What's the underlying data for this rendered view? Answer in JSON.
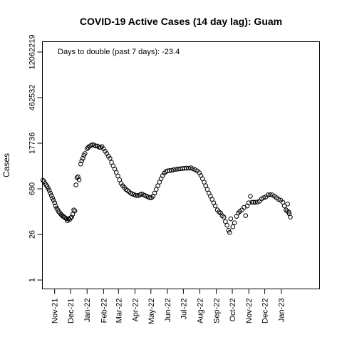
{
  "chart_data": {
    "type": "scatter",
    "title": "COVID-19 Active Cases (14 day lag): Guam",
    "ylabel": "Cases",
    "xlabel": "",
    "annotation": "Days to double (past 7 days): -23.4",
    "y_scale": "log",
    "ylim": [
      1,
      12062219
    ],
    "y_ticks": [
      1,
      26,
      680,
      17736,
      462532,
      12062219
    ],
    "y_tick_labels": [
      "1",
      "26",
      "680",
      "17736",
      "462532",
      "12062219"
    ],
    "xlim": [
      "2021-10-09",
      "2023-03-14"
    ],
    "x_ticks": [
      "2021-11-01",
      "2021-12-01",
      "2022-01-01",
      "2022-02-01",
      "2022-03-01",
      "2022-04-01",
      "2022-05-01",
      "2022-06-01",
      "2022-07-01",
      "2022-08-01",
      "2022-09-01",
      "2022-10-01",
      "2022-11-01",
      "2022-12-01",
      "2023-01-01"
    ],
    "x_tick_labels": [
      "Nov-21",
      "Dec-21",
      "Jan-22",
      "Feb-22",
      "Mar-22",
      "Apr-22",
      "May-22",
      "Jun-22",
      "Jul-22",
      "Aug-22",
      "Sep-22",
      "Oct-22",
      "Nov-22",
      "Dec-22",
      "Jan-23"
    ],
    "series": [
      {
        "marker": "open-circle",
        "color": "#000000",
        "points": [
          [
            "2021-10-10",
            1250
          ],
          [
            "2021-10-12",
            1150
          ],
          [
            "2021-10-14",
            1000
          ],
          [
            "2021-10-16",
            900
          ],
          [
            "2021-10-18",
            800
          ],
          [
            "2021-10-20",
            700
          ],
          [
            "2021-10-22",
            600
          ],
          [
            "2021-10-24",
            500
          ],
          [
            "2021-10-26",
            420
          ],
          [
            "2021-10-28",
            350
          ],
          [
            "2021-10-30",
            300
          ],
          [
            "2021-11-01",
            250
          ],
          [
            "2021-11-03",
            200
          ],
          [
            "2021-11-05",
            170
          ],
          [
            "2021-11-07",
            150
          ],
          [
            "2021-11-09",
            130
          ],
          [
            "2021-11-11",
            120
          ],
          [
            "2021-11-13",
            110
          ],
          [
            "2021-11-15",
            100
          ],
          [
            "2021-11-17",
            95
          ],
          [
            "2021-11-19",
            90
          ],
          [
            "2021-11-21",
            85
          ],
          [
            "2021-11-23",
            80
          ],
          [
            "2021-11-25",
            70
          ],
          [
            "2021-11-27",
            80
          ],
          [
            "2021-11-29",
            75
          ],
          [
            "2021-12-01",
            85
          ],
          [
            "2021-12-03",
            90
          ],
          [
            "2021-12-05",
            110
          ],
          [
            "2021-12-07",
            150
          ],
          [
            "2021-12-09",
            140
          ],
          [
            "2021-12-11",
            900
          ],
          [
            "2021-12-13",
            1500
          ],
          [
            "2021-12-15",
            1600
          ],
          [
            "2021-12-17",
            1300
          ],
          [
            "2021-12-20",
            4000
          ],
          [
            "2021-12-22",
            5000
          ],
          [
            "2021-12-24",
            6000
          ],
          [
            "2021-12-26",
            7500
          ],
          [
            "2021-12-28",
            8500
          ],
          [
            "2022-01-01",
            12000
          ],
          [
            "2022-01-03",
            13000
          ],
          [
            "2022-01-05",
            14000
          ],
          [
            "2022-01-08",
            15000
          ],
          [
            "2022-01-11",
            16000
          ],
          [
            "2022-01-14",
            15500
          ],
          [
            "2022-01-17",
            14500
          ],
          [
            "2022-01-20",
            14500
          ],
          [
            "2022-01-23",
            13500
          ],
          [
            "2022-01-26",
            13000
          ],
          [
            "2022-01-29",
            14000
          ],
          [
            "2022-02-01",
            12000
          ],
          [
            "2022-02-04",
            10000
          ],
          [
            "2022-02-07",
            8500
          ],
          [
            "2022-02-10",
            7000
          ],
          [
            "2022-02-13",
            6000
          ],
          [
            "2022-02-16",
            4500
          ],
          [
            "2022-02-19",
            3500
          ],
          [
            "2022-02-22",
            2800
          ],
          [
            "2022-02-25",
            2200
          ],
          [
            "2022-02-28",
            1700
          ],
          [
            "2022-03-03",
            1300
          ],
          [
            "2022-03-06",
            1000
          ],
          [
            "2022-03-09",
            850
          ],
          [
            "2022-03-12",
            750
          ],
          [
            "2022-03-15",
            650
          ],
          [
            "2022-03-18",
            600
          ],
          [
            "2022-03-21",
            550
          ],
          [
            "2022-03-24",
            500
          ],
          [
            "2022-03-27",
            470
          ],
          [
            "2022-03-30",
            450
          ],
          [
            "2022-04-02",
            430
          ],
          [
            "2022-04-05",
            420
          ],
          [
            "2022-04-08",
            420
          ],
          [
            "2022-04-11",
            450
          ],
          [
            "2022-04-14",
            470
          ],
          [
            "2022-04-17",
            440
          ],
          [
            "2022-04-20",
            420
          ],
          [
            "2022-04-23",
            400
          ],
          [
            "2022-04-26",
            380
          ],
          [
            "2022-04-29",
            360
          ],
          [
            "2022-05-02",
            360
          ],
          [
            "2022-05-05",
            400
          ],
          [
            "2022-05-08",
            500
          ],
          [
            "2022-05-11",
            650
          ],
          [
            "2022-05-14",
            850
          ],
          [
            "2022-05-17",
            1100
          ],
          [
            "2022-05-20",
            1400
          ],
          [
            "2022-05-23",
            1750
          ],
          [
            "2022-05-26",
            2100
          ],
          [
            "2022-05-29",
            2300
          ],
          [
            "2022-06-01",
            2450
          ],
          [
            "2022-06-05",
            2500
          ],
          [
            "2022-06-09",
            2550
          ],
          [
            "2022-06-13",
            2650
          ],
          [
            "2022-06-17",
            2750
          ],
          [
            "2022-06-21",
            2800
          ],
          [
            "2022-06-25",
            2850
          ],
          [
            "2022-06-29",
            2900
          ],
          [
            "2022-07-03",
            2950
          ],
          [
            "2022-07-07",
            3000
          ],
          [
            "2022-07-11",
            2950
          ],
          [
            "2022-07-15",
            3050
          ],
          [
            "2022-07-19",
            2850
          ],
          [
            "2022-07-23",
            2650
          ],
          [
            "2022-07-27",
            2450
          ],
          [
            "2022-07-31",
            2150
          ],
          [
            "2022-08-03",
            1750
          ],
          [
            "2022-08-06",
            1400
          ],
          [
            "2022-08-09",
            1100
          ],
          [
            "2022-08-12",
            850
          ],
          [
            "2022-08-15",
            650
          ],
          [
            "2022-08-18",
            500
          ],
          [
            "2022-08-21",
            400
          ],
          [
            "2022-08-24",
            320
          ],
          [
            "2022-08-27",
            250
          ],
          [
            "2022-08-30",
            200
          ],
          [
            "2022-09-03",
            150
          ],
          [
            "2022-09-06",
            130
          ],
          [
            "2022-09-09",
            120
          ],
          [
            "2022-09-12",
            100
          ],
          [
            "2022-09-15",
            90
          ],
          [
            "2022-09-18",
            65
          ],
          [
            "2022-09-21",
            50
          ],
          [
            "2022-09-24",
            35
          ],
          [
            "2022-09-26",
            30
          ],
          [
            "2022-09-28",
            80
          ],
          [
            "2022-10-02",
            45
          ],
          [
            "2022-10-05",
            60
          ],
          [
            "2022-10-09",
            95
          ],
          [
            "2022-10-12",
            120
          ],
          [
            "2022-10-15",
            135
          ],
          [
            "2022-10-19",
            150
          ],
          [
            "2022-10-23",
            180
          ],
          [
            "2022-10-26",
            100
          ],
          [
            "2022-10-29",
            200
          ],
          [
            "2022-11-01",
            250
          ],
          [
            "2022-11-04",
            400
          ],
          [
            "2022-11-07",
            260
          ],
          [
            "2022-11-10",
            260
          ],
          [
            "2022-11-13",
            260
          ],
          [
            "2022-11-17",
            265
          ],
          [
            "2022-11-21",
            280
          ],
          [
            "2022-11-25",
            330
          ],
          [
            "2022-11-29",
            360
          ],
          [
            "2022-12-03",
            380
          ],
          [
            "2022-12-07",
            440
          ],
          [
            "2022-12-11",
            445
          ],
          [
            "2022-12-15",
            440
          ],
          [
            "2022-12-19",
            400
          ],
          [
            "2022-12-23",
            360
          ],
          [
            "2022-12-27",
            320
          ],
          [
            "2022-12-31",
            300
          ],
          [
            "2023-01-04",
            260
          ],
          [
            "2023-01-07",
            200
          ],
          [
            "2023-01-10",
            150
          ],
          [
            "2023-01-12",
            140
          ],
          [
            "2023-01-13",
            230
          ],
          [
            "2023-01-15",
            130
          ],
          [
            "2023-01-16",
            115
          ],
          [
            "2023-01-18",
            90
          ]
        ]
      }
    ]
  }
}
